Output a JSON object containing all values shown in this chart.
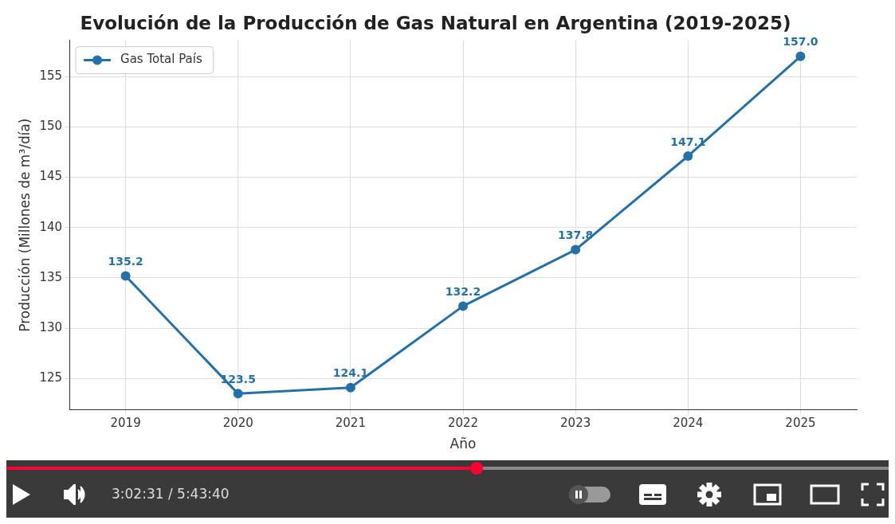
{
  "chart_data": {
    "type": "line",
    "title": "Evolución de la Producción de Gas Natural en Argentina (2019-2025)",
    "xlabel": "Año",
    "ylabel": "Producción (Millones de m³/día)",
    "categories": [
      "2019",
      "2020",
      "2021",
      "2022",
      "2023",
      "2024",
      "2025"
    ],
    "series": [
      {
        "name": "Gas Total País",
        "color": "#2471a8",
        "values": [
          135.2,
          123.5,
          124.1,
          132.2,
          137.8,
          147.1,
          157.0
        ],
        "value_labels": [
          "135.2",
          "123.5",
          "124.1",
          "132.2",
          "137.8",
          "147.1",
          "157.0"
        ]
      }
    ],
    "ylim": [
      121.9,
      158.6
    ],
    "yticks": [
      125,
      130,
      135,
      140,
      145,
      150,
      155
    ],
    "grid": true,
    "legend": "top left",
    "marker": "circle",
    "line_style": "solid",
    "annotations": [
      "3:02:31 / 5:43:40"
    ]
  }
}
